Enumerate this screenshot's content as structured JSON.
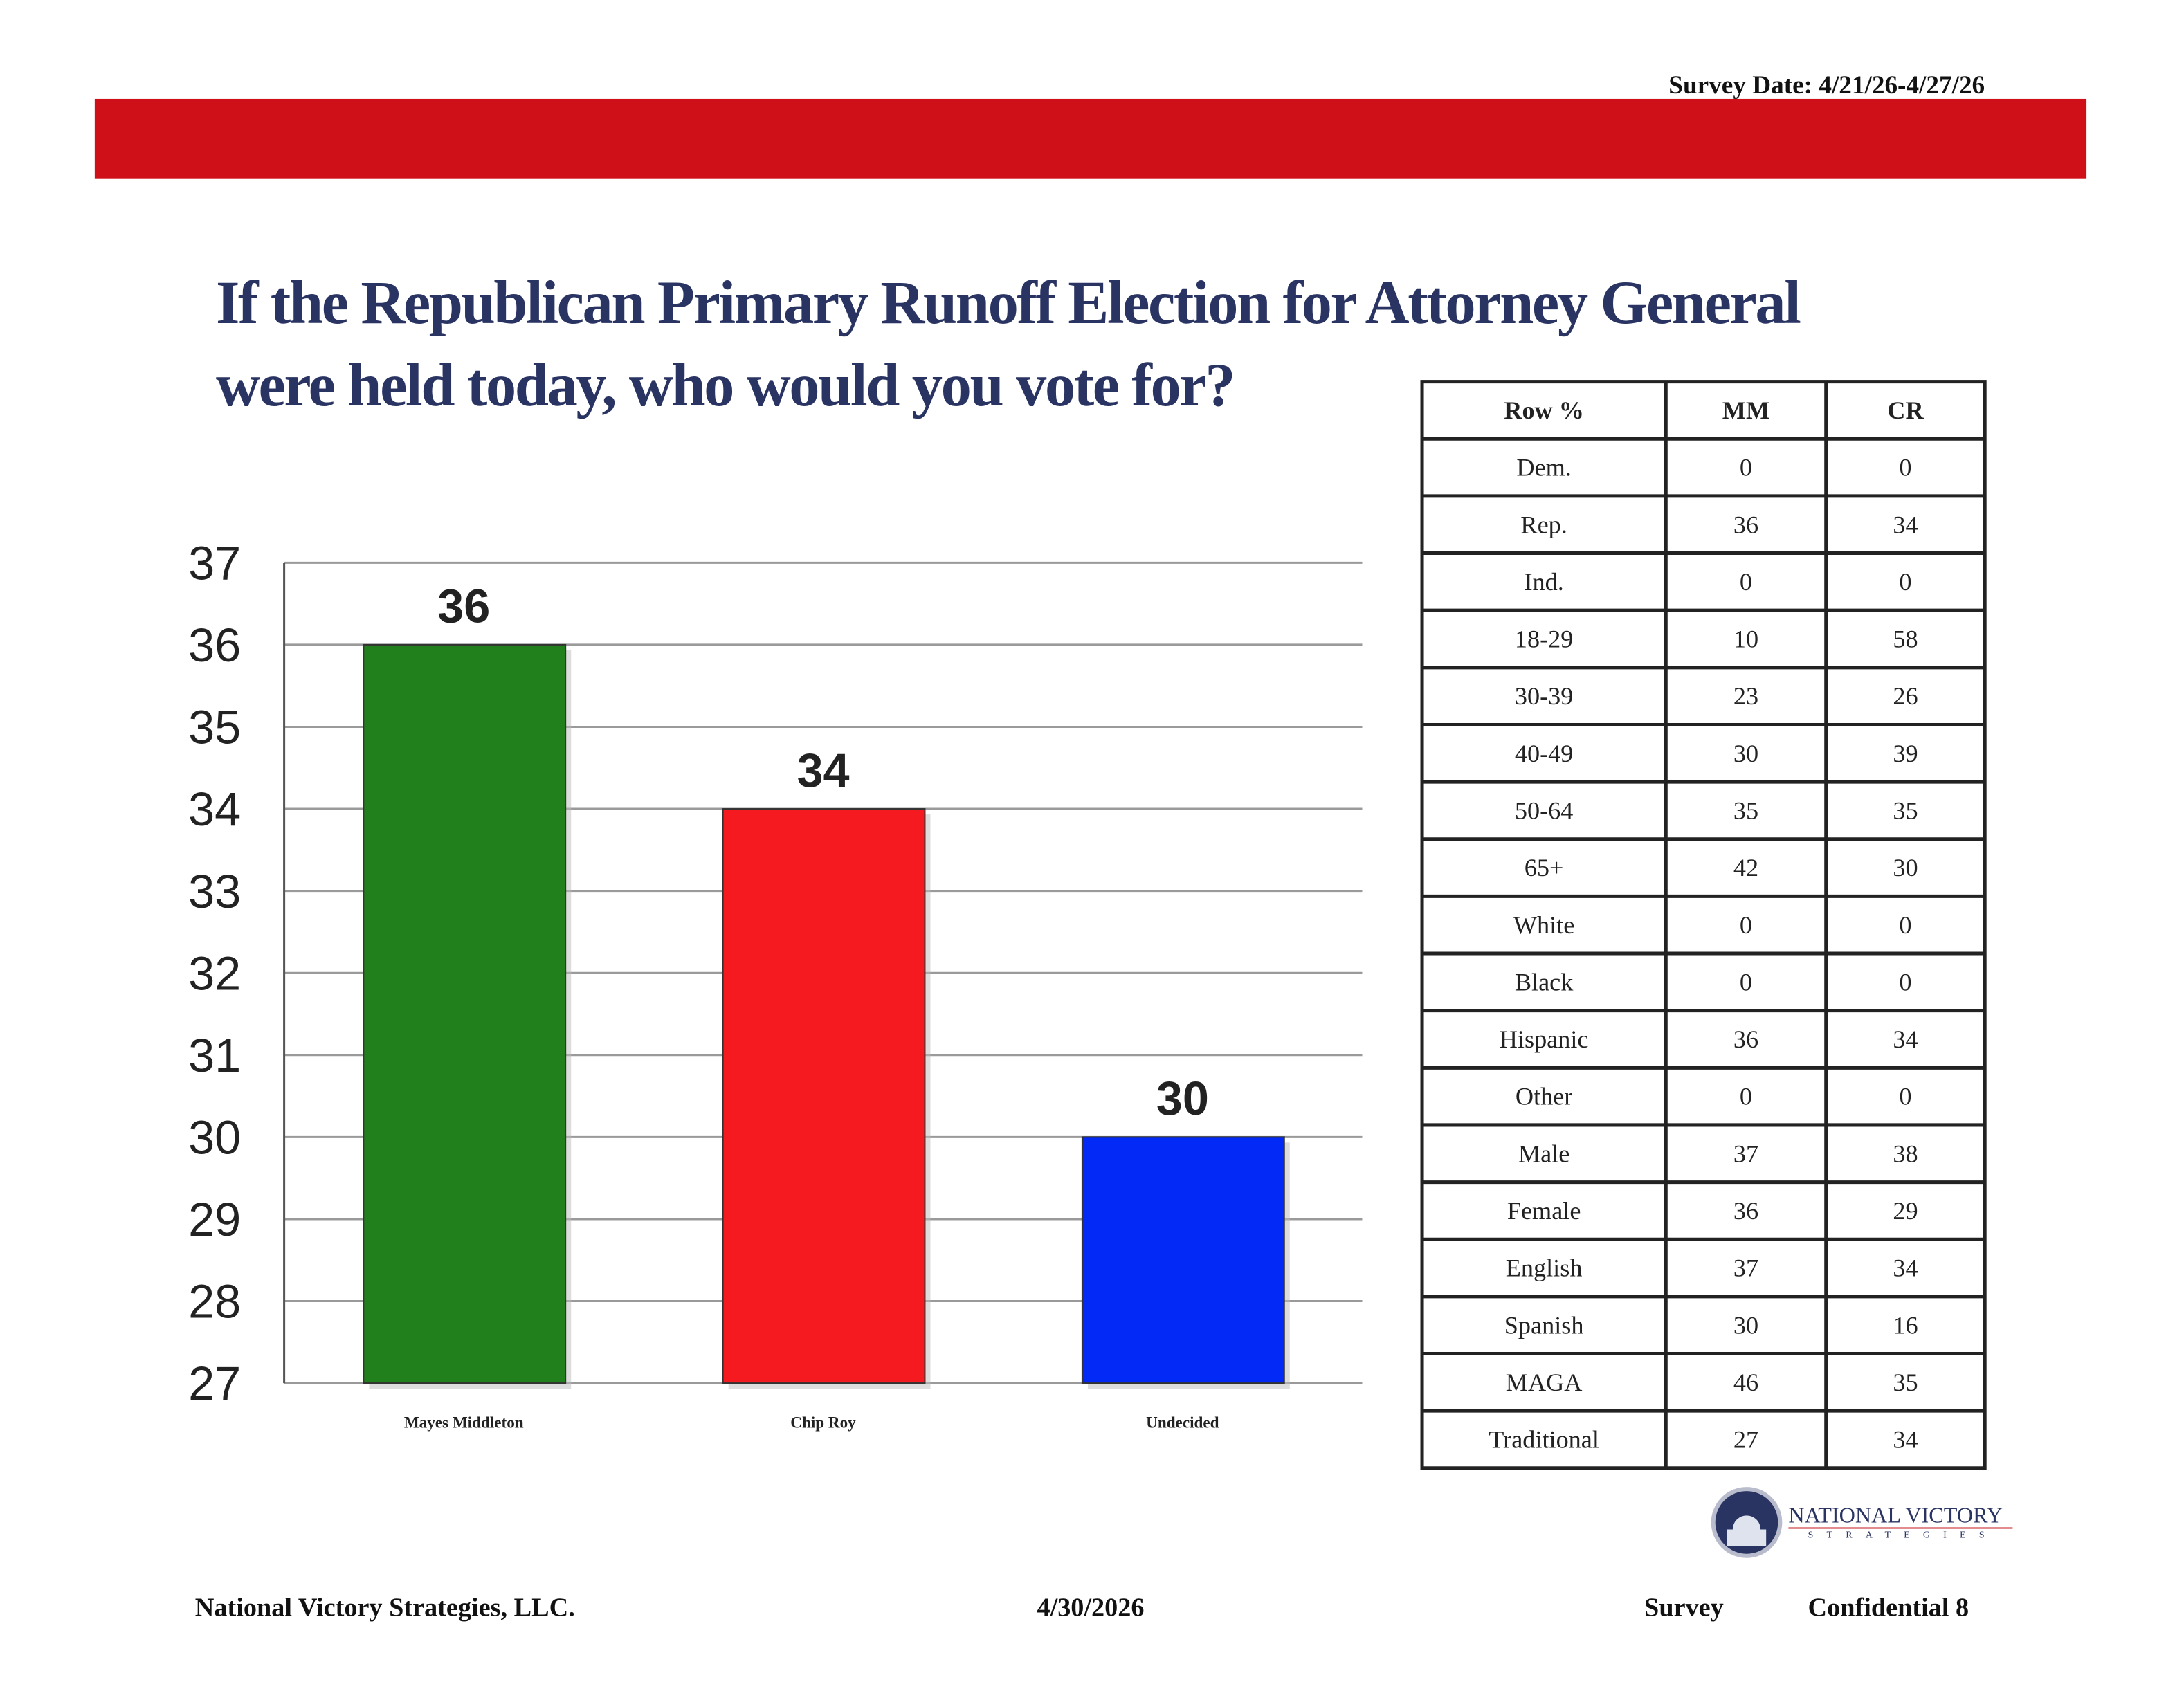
{
  "header": {
    "survey_date": "Survey Date: 4/21/26-4/27/26"
  },
  "chart_data": {
    "type": "bar",
    "title": [
      "If the Republican Primary Runoff Election for Attorney General",
      "were held today, who would you vote for?"
    ],
    "categories": [
      "Mayes Middleton",
      "Chip Roy",
      "Undecided"
    ],
    "values": [
      36,
      34,
      30
    ],
    "colors": [
      "#22801c",
      "#f41a20",
      "#0229f5"
    ],
    "ylim": [
      27,
      37
    ],
    "yticks": [
      27,
      28,
      29,
      30,
      31,
      32,
      33,
      34,
      35,
      36,
      37
    ],
    "grid": true
  },
  "table": {
    "header": [
      "Row %",
      "MM",
      "CR"
    ],
    "rows": [
      [
        "Dem.",
        0,
        0
      ],
      [
        "Rep.",
        36,
        34
      ],
      [
        "Ind.",
        0,
        0
      ],
      [
        "18-29",
        10,
        58
      ],
      [
        "30-39",
        23,
        26
      ],
      [
        "40-49",
        30,
        39
      ],
      [
        "50-64",
        35,
        35
      ],
      [
        "65+",
        42,
        30
      ],
      [
        "White",
        0,
        0
      ],
      [
        "Black",
        0,
        0
      ],
      [
        "Hispanic",
        36,
        34
      ],
      [
        "Other",
        0,
        0
      ],
      [
        "Male",
        37,
        38
      ],
      [
        "Female",
        36,
        29
      ],
      [
        "English",
        37,
        34
      ],
      [
        "Spanish",
        30,
        16
      ],
      [
        "MAGA",
        46,
        35
      ],
      [
        "Traditional",
        27,
        34
      ]
    ]
  },
  "logo": {
    "name": "NATIONAL VICTORY",
    "sub": "STRATEGIES"
  },
  "footer": {
    "company": "National Victory Strategies, LLC.",
    "date": "4/30/2026",
    "survey": "Survey",
    "page": "Confidential 8"
  }
}
